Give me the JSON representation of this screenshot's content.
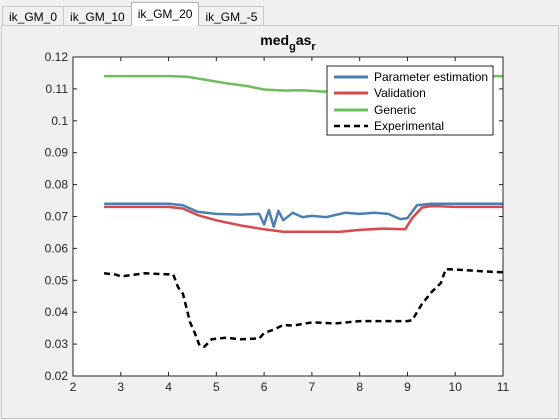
{
  "tabs": [
    {
      "label": "ik_GM_0",
      "active": false
    },
    {
      "label": "ik_GM_10",
      "active": false
    },
    {
      "label": "ik_GM_20",
      "active": true
    },
    {
      "label": "ik_GM_-5",
      "active": false
    }
  ],
  "chart_data": {
    "type": "line",
    "title": {
      "base": "med",
      "sub1": "g",
      "mid": "as",
      "sub2": "r"
    },
    "xlabel": "",
    "ylabel": "",
    "xlim": [
      2,
      11
    ],
    "ylim": [
      0.02,
      0.12
    ],
    "xticks": [
      "2",
      "3",
      "4",
      "5",
      "6",
      "7",
      "8",
      "9",
      "10",
      "11"
    ],
    "yticks": [
      "0.02",
      "0.03",
      "0.04",
      "0.05",
      "0.06",
      "0.07",
      "0.08",
      "0.09",
      "0.1",
      "0.11",
      "0.12"
    ],
    "grid": false,
    "legend_position": "top-right",
    "series": [
      {
        "name": "Parameter estimation",
        "color": "#4a7fb5",
        "dash": "solid",
        "x": [
          2.65,
          4.0,
          4.3,
          4.6,
          5.0,
          5.5,
          5.9,
          6.0,
          6.1,
          6.2,
          6.3,
          6.4,
          6.6,
          6.8,
          7.0,
          7.3,
          7.7,
          8.0,
          8.3,
          8.6,
          8.85,
          9.0,
          9.2,
          9.5,
          10.0,
          11.0
        ],
        "y": [
          0.074,
          0.074,
          0.0735,
          0.0715,
          0.0708,
          0.0706,
          0.0708,
          0.0675,
          0.072,
          0.0668,
          0.0718,
          0.0688,
          0.0712,
          0.0698,
          0.0702,
          0.0698,
          0.0712,
          0.0708,
          0.0712,
          0.0708,
          0.0692,
          0.0695,
          0.0735,
          0.074,
          0.074,
          0.074
        ]
      },
      {
        "name": "Validation",
        "color": "#d9484a",
        "dash": "solid",
        "x": [
          2.65,
          4.0,
          4.3,
          4.6,
          5.0,
          5.5,
          6.0,
          6.4,
          7.0,
          7.6,
          8.0,
          8.5,
          8.95,
          9.1,
          9.3,
          9.5,
          10.0,
          11.0
        ],
        "y": [
          0.073,
          0.073,
          0.0725,
          0.0705,
          0.0688,
          0.0672,
          0.066,
          0.0652,
          0.0652,
          0.0652,
          0.0658,
          0.0662,
          0.066,
          0.0695,
          0.0728,
          0.0733,
          0.073,
          0.073
        ]
      },
      {
        "name": "Generic",
        "color": "#6cbf5c",
        "dash": "solid",
        "x": [
          2.65,
          3.5,
          4.0,
          4.4,
          4.8,
          5.2,
          5.6,
          6.0,
          6.4,
          6.8,
          7.2,
          7.7,
          8.2,
          8.7,
          9.2,
          9.6,
          10.0,
          11.0
        ],
        "y": [
          0.114,
          0.114,
          0.114,
          0.1138,
          0.1128,
          0.1118,
          0.111,
          0.1098,
          0.1095,
          0.1096,
          0.1092,
          0.1092,
          0.1098,
          0.1108,
          0.1125,
          0.1132,
          0.114,
          0.114
        ]
      },
      {
        "name": "Experimental",
        "color": "#000000",
        "dash": "dashed",
        "x": [
          2.65,
          2.9,
          3.0,
          3.5,
          4.1,
          4.2,
          4.3,
          4.45,
          4.55,
          4.65,
          4.75,
          4.9,
          5.2,
          5.5,
          5.9,
          6.0,
          6.2,
          6.4,
          6.6,
          7.0,
          7.5,
          8.0,
          8.5,
          9.0,
          9.1,
          9.3,
          9.5,
          9.7,
          9.8,
          10.2,
          10.6,
          11.0
        ],
        "y": [
          0.0522,
          0.0518,
          0.0512,
          0.0522,
          0.0518,
          0.0478,
          0.0458,
          0.0368,
          0.0335,
          0.0295,
          0.0292,
          0.0315,
          0.032,
          0.0315,
          0.0318,
          0.0335,
          0.0345,
          0.036,
          0.0358,
          0.0368,
          0.0365,
          0.0372,
          0.0372,
          0.0372,
          0.0375,
          0.0425,
          0.0462,
          0.0492,
          0.0535,
          0.0532,
          0.0528,
          0.0525
        ]
      }
    ]
  }
}
